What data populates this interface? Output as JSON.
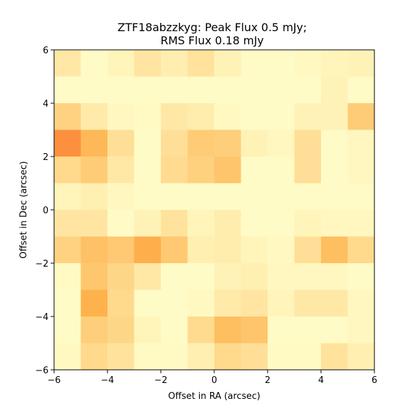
{
  "chart_data": {
    "type": "heatmap",
    "title_line1": "ZTF18abzzkyg: Peak Flux 0.5 mJy;",
    "title_line2": "RMS Flux 0.18 mJy",
    "xlabel": "Offset in RA (arcsec)",
    "ylabel": "Offset in Dec (arcsec)",
    "xlim": [
      -6,
      6
    ],
    "ylim": [
      -6,
      6
    ],
    "x_ticks": [
      "−6",
      "−4",
      "−2",
      "0",
      "2",
      "4",
      "6"
    ],
    "y_ticks": [
      "−6",
      "−4",
      "−2",
      "0",
      "2",
      "4",
      "6"
    ],
    "colormap": {
      "low": "#ffffcc",
      "mid": "#feb24c",
      "high": "#fd7c36"
    },
    "row_order": "top-to-bottom",
    "grid": [
      [
        0.18,
        0.03,
        0.08,
        0.2,
        0.13,
        0.22,
        0.1,
        0.03,
        0.03,
        0.05,
        0.08,
        0.1
      ],
      [
        0.03,
        0.03,
        0.03,
        0.03,
        0.03,
        0.03,
        0.03,
        0.03,
        0.03,
        0.03,
        0.1,
        0.03
      ],
      [
        0.35,
        0.16,
        0.06,
        0.04,
        0.18,
        0.14,
        0.05,
        0.03,
        0.03,
        0.1,
        0.1,
        0.4
      ],
      [
        0.85,
        0.55,
        0.25,
        0.03,
        0.25,
        0.4,
        0.38,
        0.1,
        0.06,
        0.25,
        0.03,
        0.06
      ],
      [
        0.3,
        0.4,
        0.18,
        0.03,
        0.28,
        0.36,
        0.45,
        0.03,
        0.03,
        0.25,
        0.03,
        0.06
      ],
      [
        0.08,
        0.12,
        0.06,
        0.03,
        0.03,
        0.03,
        0.03,
        0.03,
        0.03,
        0.03,
        0.03,
        0.03
      ],
      [
        0.2,
        0.2,
        0.03,
        0.1,
        0.22,
        0.08,
        0.14,
        0.03,
        0.03,
        0.08,
        0.06,
        0.06
      ],
      [
        0.35,
        0.48,
        0.42,
        0.62,
        0.42,
        0.12,
        0.14,
        0.08,
        0.05,
        0.25,
        0.5,
        0.3
      ],
      [
        0.04,
        0.44,
        0.32,
        0.18,
        0.03,
        0.03,
        0.1,
        0.12,
        0.06,
        0.06,
        0.06,
        0.03
      ],
      [
        0.03,
        0.6,
        0.3,
        0.03,
        0.03,
        0.05,
        0.16,
        0.2,
        0.08,
        0.18,
        0.18,
        0.06
      ],
      [
        0.03,
        0.38,
        0.32,
        0.08,
        0.03,
        0.28,
        0.5,
        0.45,
        0.03,
        0.03,
        0.03,
        0.06
      ],
      [
        0.05,
        0.3,
        0.22,
        0.04,
        0.04,
        0.12,
        0.3,
        0.25,
        0.04,
        0.04,
        0.22,
        0.12
      ]
    ]
  }
}
